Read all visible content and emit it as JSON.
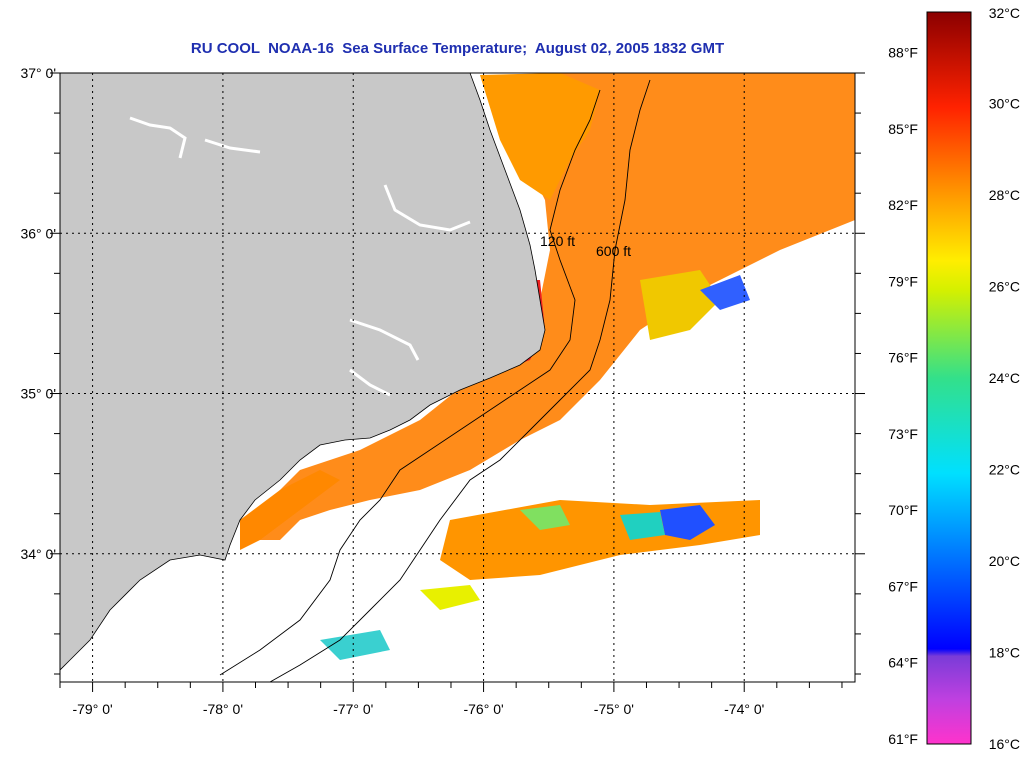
{
  "title": "RU COOL  NOAA-16  Sea Surface Temperature;  August 02, 2005 1832 GMT",
  "map": {
    "lon_range": [
      -79.25,
      -73.15
    ],
    "lat_range": [
      33.2,
      37.0
    ],
    "lat_labels": [
      {
        "value": 37.0,
        "label": "37° 0'"
      },
      {
        "value": 36.0,
        "label": "36° 0'"
      },
      {
        "value": 35.0,
        "label": "35° 0'"
      },
      {
        "value": 34.0,
        "label": "34° 0'"
      }
    ],
    "lon_labels": [
      {
        "value": -79.0,
        "label": "-79° 0'"
      },
      {
        "value": -78.0,
        "label": "-78° 0'"
      },
      {
        "value": -77.0,
        "label": "-77° 0'"
      },
      {
        "value": -76.0,
        "label": "-76° 0'"
      },
      {
        "value": -75.0,
        "label": "-75° 0'"
      },
      {
        "value": -74.0,
        "label": "-74° 0'"
      }
    ],
    "contour_labels": [
      "120 ft",
      "600 ft"
    ],
    "land_color": "#c8c8c8",
    "cloud_color": "#ffffff"
  },
  "colorbar": {
    "celsius_range": [
      16,
      32
    ],
    "fahrenheit_labels": [
      "88°F",
      "85°F",
      "82°F",
      "79°F",
      "76°F",
      "73°F",
      "70°F",
      "67°F",
      "64°F",
      "61°F"
    ],
    "fahrenheit_values": [
      88,
      85,
      82,
      79,
      76,
      73,
      70,
      67,
      64,
      61
    ],
    "celsius_labels": [
      "32°C",
      "30°C",
      "28°C",
      "26°C",
      "24°C",
      "22°C",
      "20°C",
      "18°C",
      "16°C"
    ],
    "celsius_values": [
      32,
      30,
      28,
      26,
      24,
      22,
      20,
      18,
      16
    ],
    "colors": [
      "#ff33cc",
      "#8a2be2",
      "#0000ff",
      "#00bfff",
      "#00e5e5",
      "#33e08a",
      "#d4f000",
      "#ffee00",
      "#ff9900",
      "#ff2200",
      "#8b0000"
    ]
  }
}
